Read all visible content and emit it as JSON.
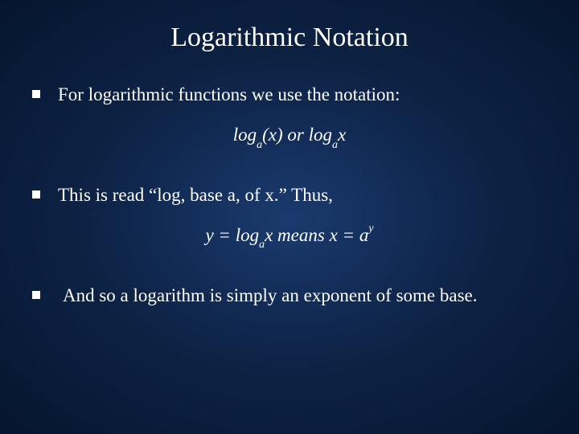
{
  "slide": {
    "title": "Logarithmic Notation",
    "background_gradient": [
      "#1a3a6e",
      "#0d2244",
      "#051530"
    ],
    "text_color": "#ffffff",
    "title_font": "Comic Sans MS",
    "body_font": "Georgia",
    "title_fontsize": 34,
    "body_fontsize": 23,
    "bullet1": "For logarithmic functions we use the notation:",
    "formula1_prefix": "log",
    "formula1_sub": "a",
    "formula1_arg": "(x)",
    "formula1_or": " or ",
    "formula1_prefix2": "log",
    "formula1_sub2": "a",
    "formula1_arg2": "x",
    "bullet2": "This is read “log, base a, of x.” Thus,",
    "formula2_lhs_y": "y",
    "formula2_eq": " = ",
    "formula2_log": "log",
    "formula2_sub": "a",
    "formula2_x": "x",
    "formula2_means": " means ",
    "formula2_x2": "x",
    "formula2_eq2": " = ",
    "formula2_a": "a",
    "formula2_sup": "y",
    "bullet3": "And so a logarithm is simply an exponent of some base."
  }
}
